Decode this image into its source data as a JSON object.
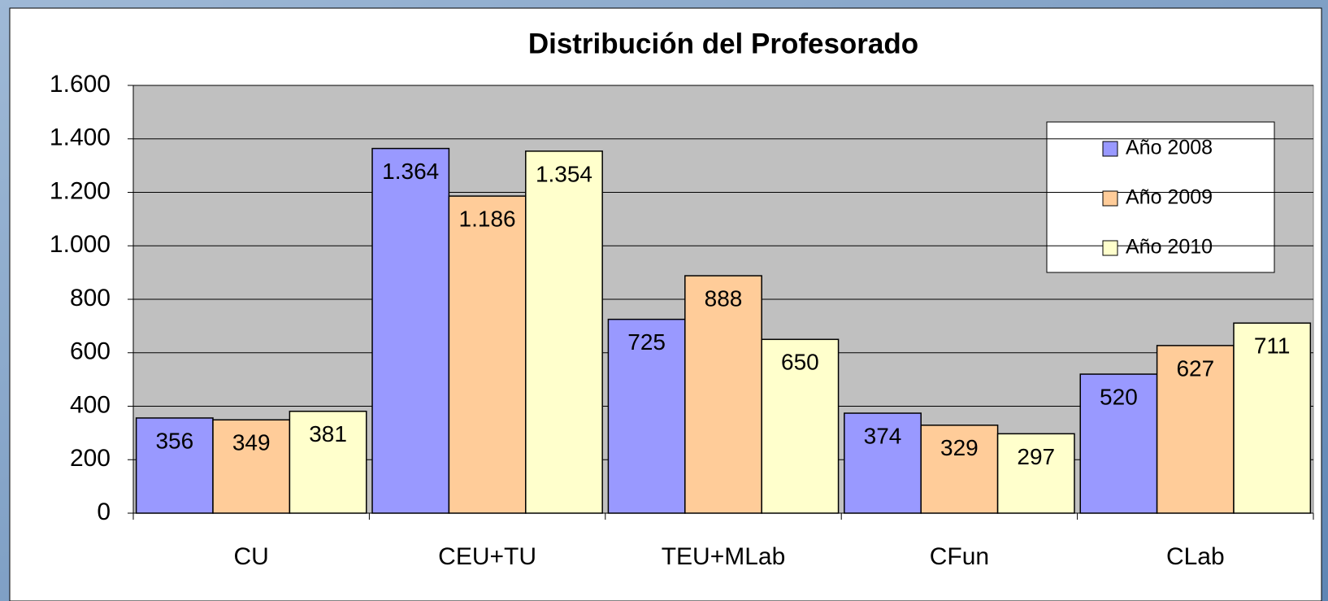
{
  "chart_data": {
    "type": "bar",
    "title": "Distribución del Profesorado",
    "categories": [
      "CU",
      "CEU+TU",
      "TEU+MLab",
      "CFun",
      "CLab"
    ],
    "series": [
      {
        "name": "Año 2008",
        "color": "#9999ff",
        "values": [
          356,
          1364,
          725,
          374,
          520
        ],
        "value_labels": [
          "356",
          "1.364",
          "725",
          "374",
          "520"
        ]
      },
      {
        "name": "Año 2009",
        "color": "#ffcc99",
        "values": [
          349,
          1186,
          888,
          329,
          627
        ],
        "value_labels": [
          "349",
          "1.186",
          "888",
          "329",
          "627"
        ]
      },
      {
        "name": "Año 2010",
        "color": "#ffffcc",
        "values": [
          381,
          1354,
          650,
          297,
          711
        ],
        "value_labels": [
          "381",
          "1.354",
          "650",
          "297",
          "711"
        ]
      }
    ],
    "ylim": [
      0,
      1600
    ],
    "yticks": [
      0,
      200,
      400,
      600,
      800,
      {
        "value": 1000,
        "label": "1.000"
      },
      {
        "value": 1200,
        "label": "1.200"
      },
      {
        "value": 1400,
        "label": "1.400"
      },
      {
        "value": 1600,
        "label": "1.600"
      }
    ],
    "grid": true,
    "legend": "upper right"
  }
}
